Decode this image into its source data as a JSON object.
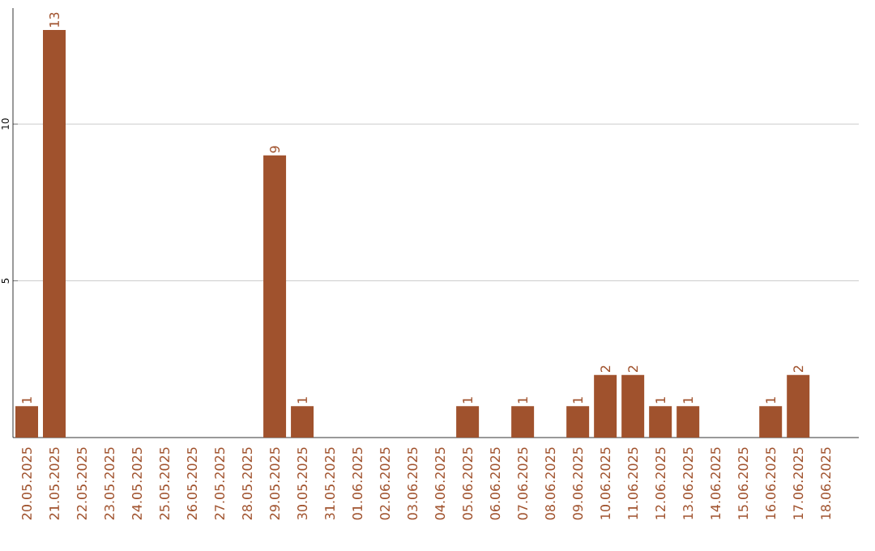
{
  "chart_data": {
    "type": "bar",
    "categories": [
      "20.05.2025",
      "21.05.2025",
      "22.05.2025",
      "23.05.2025",
      "24.05.2025",
      "25.05.2025",
      "26.05.2025",
      "27.05.2025",
      "28.05.2025",
      "29.05.2025",
      "30.05.2025",
      "31.05.2025",
      "01.06.2025",
      "02.06.2025",
      "03.06.2025",
      "04.06.2025",
      "05.06.2025",
      "06.06.2025",
      "07.06.2025",
      "08.06.2025",
      "09.06.2025",
      "10.06.2025",
      "11.06.2025",
      "12.06.2025",
      "13.06.2025",
      "14.06.2025",
      "15.06.2025",
      "16.06.2025",
      "17.06.2025",
      "18.06.2025"
    ],
    "values": [
      1,
      13,
      0,
      0,
      0,
      0,
      0,
      0,
      0,
      9,
      1,
      0,
      0,
      0,
      0,
      0,
      1,
      0,
      1,
      0,
      1,
      2,
      2,
      1,
      1,
      0,
      0,
      1,
      2,
      0
    ],
    "value_labels": [
      "1",
      "13",
      null,
      null,
      null,
      null,
      null,
      null,
      null,
      "9",
      "1",
      null,
      null,
      null,
      null,
      null,
      "1",
      null,
      "1",
      null,
      "1",
      "2",
      "2",
      "1",
      "1",
      null,
      null,
      "1",
      "2",
      null
    ],
    "color": "#a0522d",
    "ylim": [
      0,
      13.7
    ],
    "yticks": [
      5,
      10
    ],
    "grid": "y"
  }
}
